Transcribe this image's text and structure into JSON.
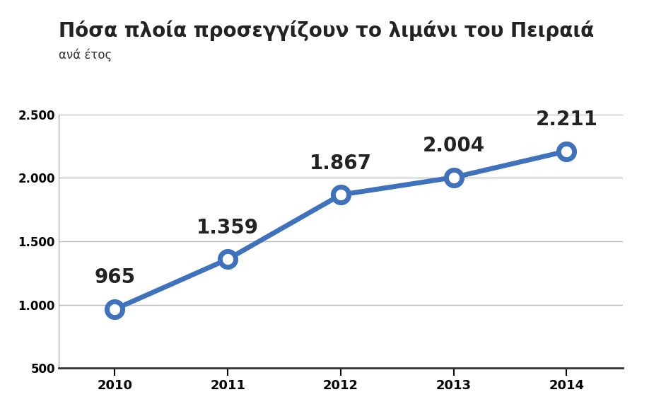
{
  "chart_data": {
    "type": "line",
    "title": "Πόσα πλοία προσεγγίζουν το λιμάνι του Πειραιά",
    "subtitle": "ανά έτος",
    "categories": [
      "2010",
      "2011",
      "2012",
      "2013",
      "2014"
    ],
    "values": [
      965,
      1359,
      1867,
      2004,
      2211
    ],
    "value_labels": [
      "965",
      "1.359",
      "1.867",
      "2.004",
      "2.211"
    ],
    "color": "#3f72bd",
    "marker": "circle",
    "line_style": "solid",
    "data_labels": true,
    "grid": true,
    "ylim": [
      500,
      2500
    ],
    "yticks": [
      500,
      {
        "value": 1000,
        "label": "1.000"
      },
      {
        "value": 1500,
        "label": "1.500"
      },
      {
        "value": 2000,
        "label": "2.000"
      },
      {
        "value": 2500,
        "label": "2.500"
      }
    ]
  }
}
